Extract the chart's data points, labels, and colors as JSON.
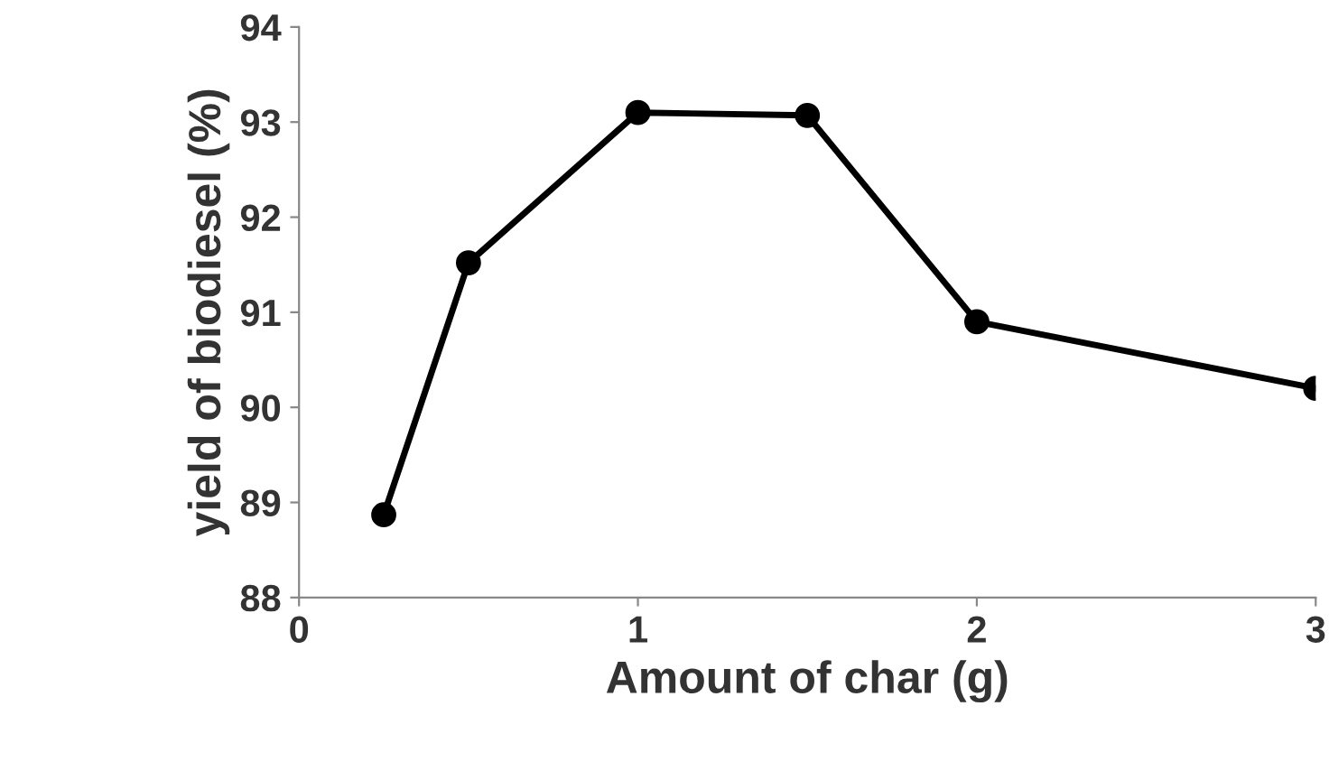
{
  "chart_data": {
    "type": "line",
    "xlabel": "Amount of char (g)",
    "ylabel": "yield of biodiesel (%)",
    "x": [
      0.25,
      0.5,
      1,
      1.5,
      2,
      3
    ],
    "series": [
      {
        "color": "#000000",
        "values": [
          88.87,
          91.52,
          93.1,
          93.07,
          90.9,
          90.2
        ]
      }
    ],
    "xlim": [
      0,
      3
    ],
    "xticks": [
      0,
      1,
      2,
      3
    ],
    "ylim": [
      88,
      94
    ],
    "yticks": [
      88,
      89,
      90,
      91,
      92,
      93,
      94
    ],
    "marker": "circle",
    "line_style": "solid",
    "grid": false
  }
}
